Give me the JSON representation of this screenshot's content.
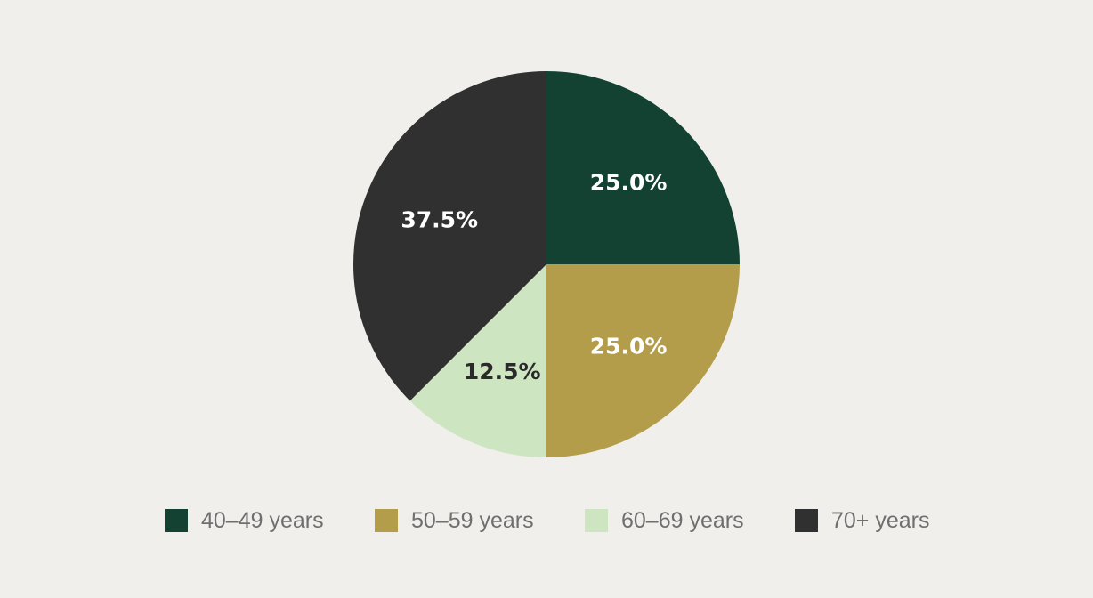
{
  "chart_data": {
    "type": "pie",
    "categories": [
      "40–49 years",
      "50–59 years",
      "60–69 years",
      "70+ years"
    ],
    "values": [
      25.0,
      25.0,
      12.5,
      37.5
    ],
    "labels": [
      "25.0%",
      "25.0%",
      "12.5%",
      "37.5%"
    ],
    "colors": [
      "#134232",
      "#b39d4b",
      "#cde5c1",
      "#303030"
    ],
    "label_colors": [
      "#ffffff",
      "#ffffff",
      "#2a2a2a",
      "#ffffff"
    ],
    "start_angle": "12 o'clock",
    "direction": "clockwise",
    "legend_position": "bottom",
    "title": ""
  }
}
